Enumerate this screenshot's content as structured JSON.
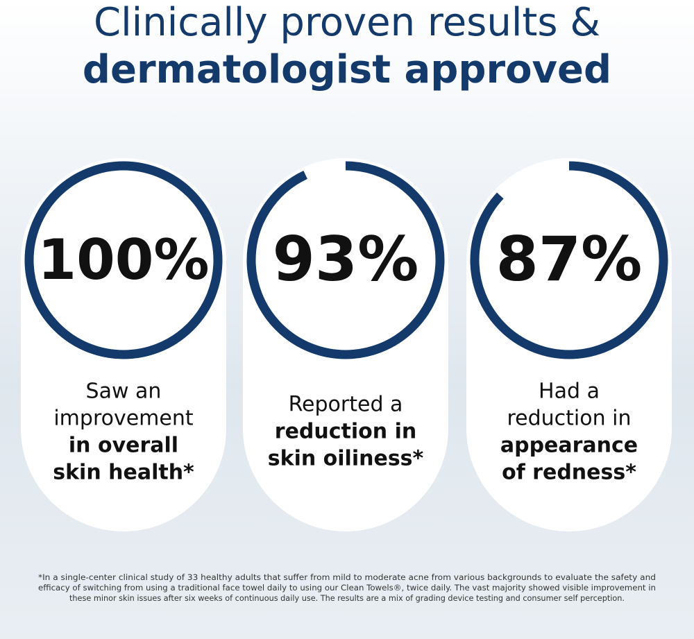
{
  "header": {
    "title_lines": [
      {
        "text": "Clinically proven results &",
        "bold": false
      },
      {
        "text": "dermatologist approved",
        "bold": true
      }
    ]
  },
  "cards": [
    {
      "value": 100,
      "value_label": "100%",
      "lines": [
        {
          "text": "Saw an",
          "bold": false
        },
        {
          "text": "improvement",
          "bold": false
        },
        {
          "text": "in overall",
          "bold": true
        },
        {
          "text": "skin health*",
          "bold": true
        }
      ]
    },
    {
      "value": 93,
      "value_label": "93%",
      "lines": [
        {
          "text": "Reported a",
          "bold": false
        },
        {
          "text": "reduction in",
          "bold": true
        },
        {
          "text": "skin oiliness*",
          "bold": true
        }
      ]
    },
    {
      "value": 87,
      "value_label": "87%",
      "lines": [
        {
          "text": "Had a",
          "bold": false
        },
        {
          "text": "reduction in",
          "bold": false
        },
        {
          "text": "appearance",
          "bold": true
        },
        {
          "text": "of redness*",
          "bold": true
        }
      ]
    }
  ],
  "ring_color": "#133a6b",
  "footnote_lines": [
    "*In a single-center clinical study of 33 healthy adults that suffer from mild to moderate acne from various backgrounds to evaluate the safety and",
    "efficacy of switching from using a traditional face towel daily to using our Clean Towels®, twice daily. The vast majority showed visible improvement in",
    "these minor skin issues after six weeks of continuous daily use. The results are a mix of grading device testing and consumer self perception."
  ]
}
